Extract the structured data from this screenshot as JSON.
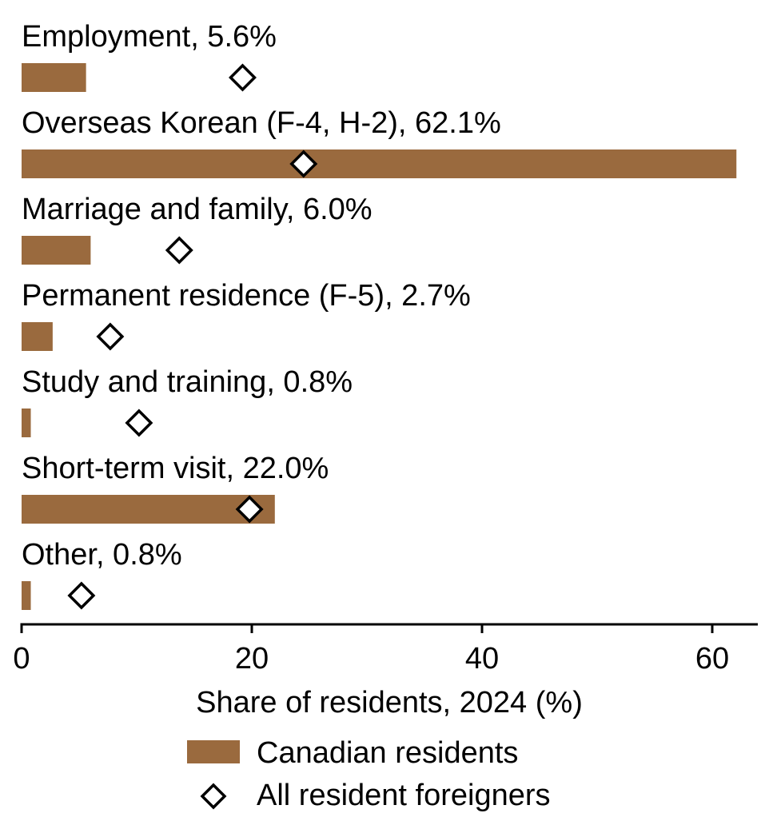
{
  "chart_data": {
    "type": "bar",
    "orientation": "horizontal",
    "categories": [
      "Employment",
      "Overseas Korean (F-4, H-2)",
      "Marriage and family",
      "Permanent residence (F-5)",
      "Study and training",
      "Short-term visit",
      "Other"
    ],
    "category_labels": [
      "Employment, 5.6%",
      "Overseas Korean (F-4, H-2), 62.1%",
      "Marriage and family, 6.0%",
      "Permanent residence (F-5), 2.7%",
      "Study and training, 0.8%",
      "Short-term visit, 22.0%",
      "Other, 0.8%"
    ],
    "series": [
      {
        "name": "Canadian residents",
        "mark": "bar",
        "color": "#9a6a3e",
        "values": [
          5.6,
          62.1,
          6.0,
          2.7,
          0.8,
          22.0,
          0.8
        ]
      },
      {
        "name": "All resident foreigners",
        "mark": "diamond",
        "color": "#000000",
        "values": [
          19.2,
          24.5,
          13.7,
          7.7,
          10.2,
          19.8,
          5.2
        ]
      }
    ],
    "xlabel": "Share of residents, 2024 (%)",
    "xlim": [
      0,
      64
    ],
    "xticks": [
      0,
      20,
      40,
      60
    ],
    "grid": false,
    "legend_position": "bottom-center"
  }
}
